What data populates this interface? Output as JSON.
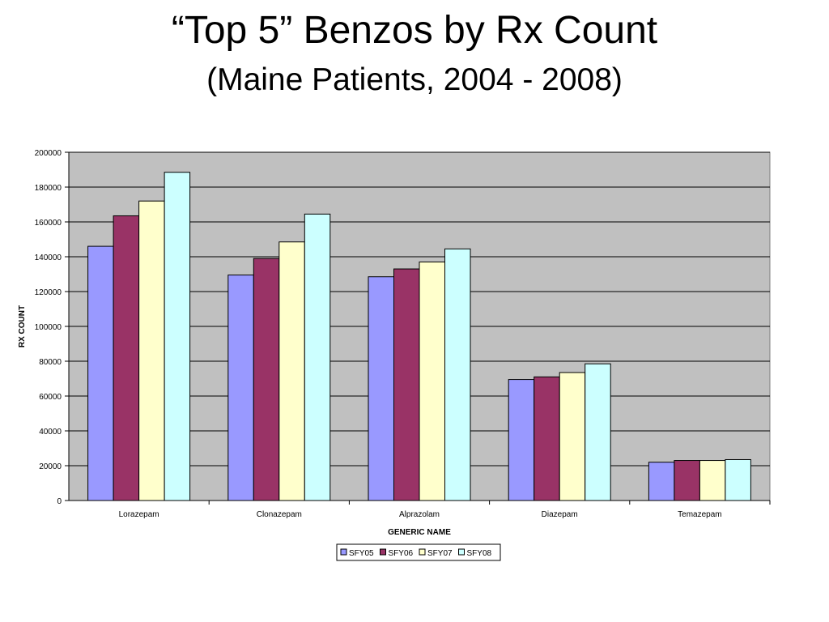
{
  "slide": {
    "title": "“Top 5” Benzos by Rx Count",
    "subtitle": "(Maine Patients, 2004 - 2008)"
  },
  "chart_data": {
    "type": "bar",
    "xlabel": "GENERIC NAME",
    "ylabel": "RX COUNT",
    "ylim": [
      0,
      200000
    ],
    "yticks": [
      0,
      20000,
      40000,
      60000,
      80000,
      100000,
      120000,
      140000,
      160000,
      180000,
      200000
    ],
    "grid": true,
    "legend_position": "bottom",
    "categories": [
      "Lorazepam",
      "Clonazepam",
      "Alprazolam",
      "Diazepam",
      "Temazepam"
    ],
    "series": [
      {
        "name": "SFY05",
        "color": "#9999ff",
        "values": [
          146000,
          129500,
          128500,
          69500,
          22000
        ]
      },
      {
        "name": "SFY06",
        "color": "#993366",
        "values": [
          163500,
          139000,
          133000,
          71000,
          23000
        ]
      },
      {
        "name": "SFY07",
        "color": "#ffffcc",
        "values": [
          172000,
          148500,
          137000,
          73500,
          23000
        ]
      },
      {
        "name": "SFY08",
        "color": "#ccffff",
        "values": [
          188500,
          164500,
          144500,
          78500,
          23500
        ]
      }
    ],
    "plot_background": "#c0c0c0"
  }
}
